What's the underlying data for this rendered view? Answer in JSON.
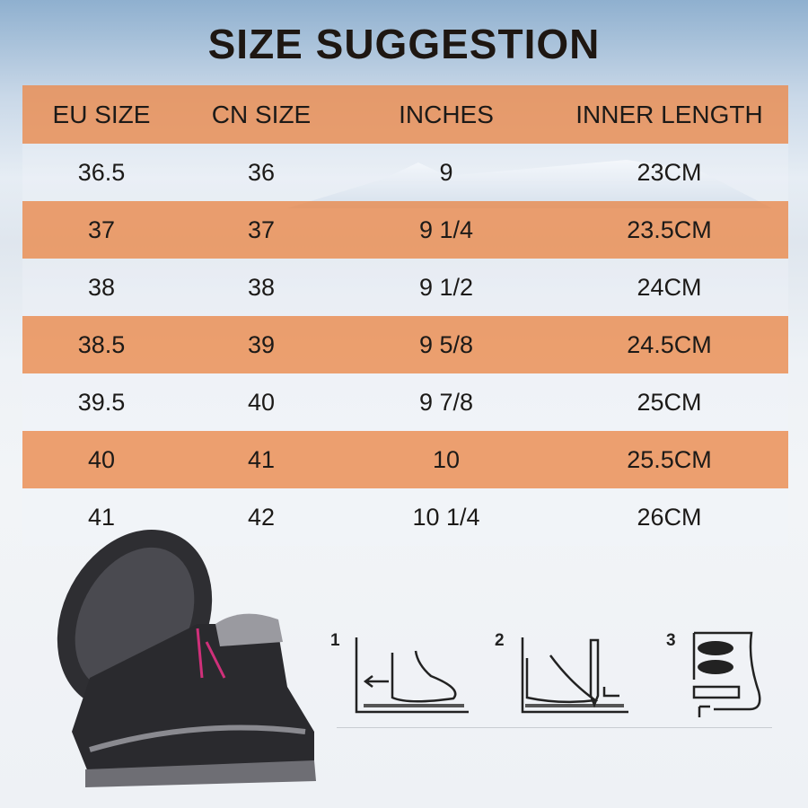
{
  "title": "SIZE SUGGESTION",
  "table": {
    "headers": [
      "EU SIZE",
      "CN SIZE",
      "INCHES",
      "INNER LENGTH"
    ],
    "rows": [
      [
        "36.5",
        "36",
        "9",
        "23CM"
      ],
      [
        "37",
        "37",
        "9 1/4",
        "23.5CM"
      ],
      [
        "38",
        "38",
        "9 1/2",
        "24CM"
      ],
      [
        "38.5",
        "39",
        "9 5/8",
        "24.5CM"
      ],
      [
        "39.5",
        "40",
        "9 7/8",
        "25CM"
      ],
      [
        "40",
        "41",
        "10",
        "25.5CM"
      ],
      [
        "41",
        "42",
        "10 1/4",
        "26CM"
      ]
    ]
  },
  "steps": [
    "1",
    "2",
    "3"
  ],
  "colors": {
    "header_band": "#ea8c50",
    "title": "#1e1712",
    "shoe": "#2a2a2e",
    "accent": "#d0307a"
  }
}
